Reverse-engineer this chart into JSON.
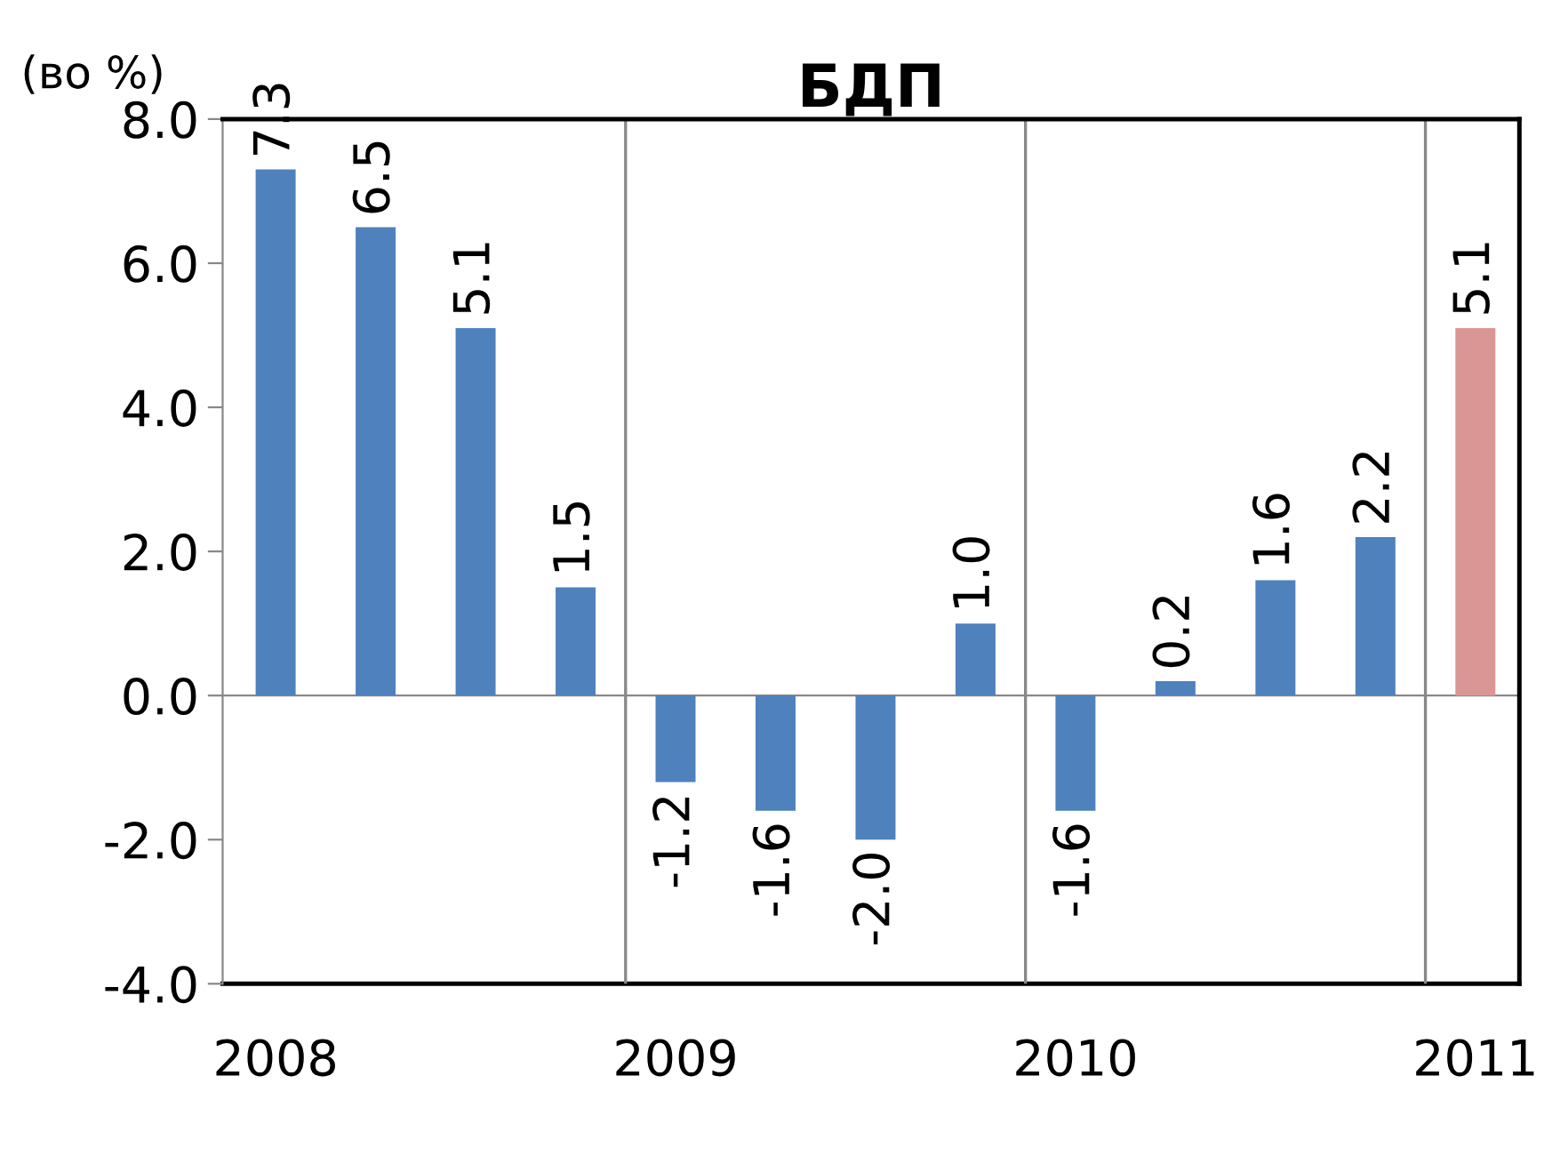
{
  "chart_data": {
    "type": "bar",
    "title": "БДП",
    "ylabel": "(во %)",
    "categories": [
      "2008",
      null,
      null,
      null,
      "2009",
      null,
      null,
      null,
      "2010",
      null,
      null,
      null,
      "2011"
    ],
    "values": [
      7.3,
      6.5,
      5.1,
      1.5,
      -1.2,
      -1.6,
      -2.0,
      1.0,
      -1.6,
      0.2,
      1.6,
      2.2,
      5.1
    ],
    "colors": [
      "#4f81bd",
      "#4f81bd",
      "#4f81bd",
      "#4f81bd",
      "#4f81bd",
      "#4f81bd",
      "#4f81bd",
      "#4f81bd",
      "#4f81bd",
      "#4f81bd",
      "#4f81bd",
      "#4f81bd",
      "#d99694"
    ],
    "value_labels": [
      "7.3",
      "6.5",
      "5.1",
      "1.5",
      "-1.2",
      "-1.6",
      "-2.0",
      "1.0",
      "-1.6",
      "0.2",
      "1.6",
      "2.2",
      "5.1"
    ],
    "ylim": [
      -4,
      8
    ],
    "yticks": [
      {
        "value": -4,
        "label": "-4.0"
      },
      {
        "value": -2,
        "label": "-2.0"
      },
      {
        "value": 0,
        "label": "0.0"
      },
      {
        "value": 2,
        "label": "2.0"
      },
      {
        "value": 4,
        "label": "4.0"
      },
      {
        "value": 6,
        "label": "6.0"
      },
      {
        "value": 8,
        "label": "8.0"
      }
    ],
    "grid": "x",
    "legend": false
  }
}
